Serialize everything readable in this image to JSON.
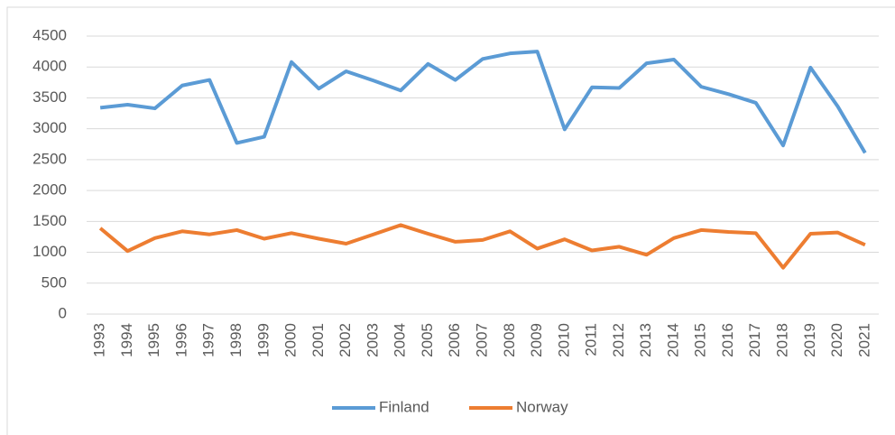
{
  "chart_data": {
    "type": "line",
    "categories": [
      "1993",
      "1994",
      "1995",
      "1996",
      "1997",
      "1998",
      "1999",
      "2000",
      "2001",
      "2002",
      "2003",
      "2004",
      "2005",
      "2006",
      "2007",
      "2008",
      "2009",
      "2010",
      "2011",
      "2012",
      "2013",
      "2014",
      "2015",
      "2016",
      "2017",
      "2018",
      "2019",
      "2020",
      "2021"
    ],
    "series": [
      {
        "name": "Finland",
        "color": "#5b9bd5",
        "values": [
          3340,
          3390,
          3330,
          3700,
          3790,
          2770,
          2870,
          4080,
          3650,
          3930,
          3780,
          3620,
          4050,
          3790,
          4130,
          4220,
          4250,
          2990,
          3670,
          3660,
          4060,
          4120,
          3680,
          3560,
          3420,
          2730,
          3990,
          3360,
          2610
        ]
      },
      {
        "name": "Norway",
        "color": "#ed7d31",
        "values": [
          1390,
          1020,
          1230,
          1340,
          1290,
          1360,
          1220,
          1310,
          1220,
          1140,
          1290,
          1440,
          1300,
          1170,
          1200,
          1340,
          1060,
          1210,
          1030,
          1090,
          960,
          1230,
          1360,
          1330,
          1310,
          750,
          1300,
          1320,
          1120
        ]
      }
    ],
    "ylim": [
      0,
      4500
    ],
    "yticks": [
      0,
      500,
      1000,
      1500,
      2000,
      2500,
      3000,
      3500,
      4000,
      4500
    ],
    "grid": true,
    "legend": "bottom"
  }
}
